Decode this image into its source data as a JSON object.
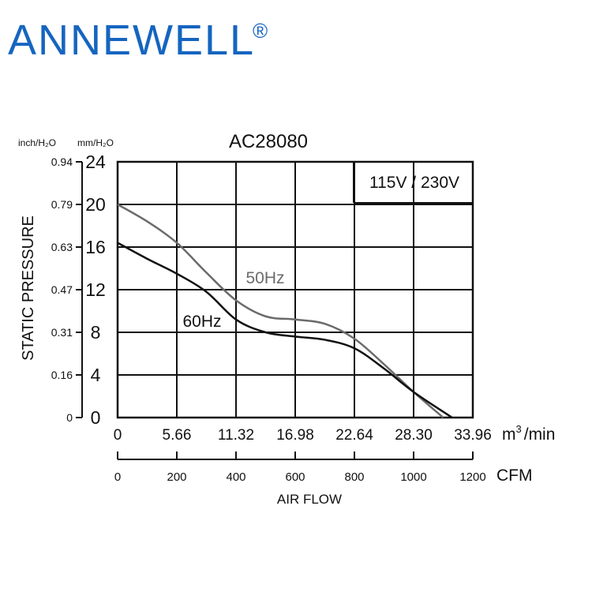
{
  "brand": {
    "name": "ANNEWELL",
    "registered_mark": "®",
    "color": "#1565c0"
  },
  "chart_data": {
    "type": "line",
    "title": "AC28080",
    "annotation": "115V / 230V",
    "xlabel": "AIR FLOW",
    "x_unit_primary": "m",
    "x_unit_primary_sup": "3",
    "x_unit_primary_tail": "/min",
    "x_unit_secondary": "CFM",
    "ylabel": "STATIC PRESSURE",
    "y_unit_primary": "mm/H₂O",
    "y_unit_secondary": "inch/H₂O",
    "x_ticks_m3min": [
      "0",
      "5.66",
      "11.32",
      "16.98",
      "22.64",
      "28.30",
      "33.96"
    ],
    "x_ticks_cfm": [
      "0",
      "200",
      "400",
      "600",
      "800",
      "1000",
      "1200"
    ],
    "y_ticks_mm": [
      "0",
      "4",
      "8",
      "12",
      "16",
      "20",
      "24"
    ],
    "y_ticks_inch": [
      "0",
      "0.16",
      "0.31",
      "0.47",
      "0.63",
      "0.79",
      "0.94"
    ],
    "xlim": [
      0,
      1200
    ],
    "ylim": [
      0,
      24
    ],
    "grid": true,
    "series": [
      {
        "name": "50Hz",
        "color": "#6b6b6b",
        "x": [
          0,
          100,
          200,
          300,
          400,
          500,
          600,
          700,
          800,
          900,
          1000,
          1100
        ],
        "y": [
          20,
          18.4,
          16.4,
          13.6,
          11,
          9.5,
          9.2,
          8.8,
          7.4,
          5.0,
          2.4,
          0
        ]
      },
      {
        "name": "60Hz",
        "color": "#111111",
        "x": [
          0,
          100,
          200,
          300,
          400,
          500,
          600,
          700,
          800,
          900,
          1000,
          1130
        ],
        "y": [
          16.4,
          14.9,
          13.5,
          11.8,
          9.2,
          8.0,
          7.6,
          7.3,
          6.5,
          4.6,
          2.4,
          0
        ]
      }
    ]
  }
}
